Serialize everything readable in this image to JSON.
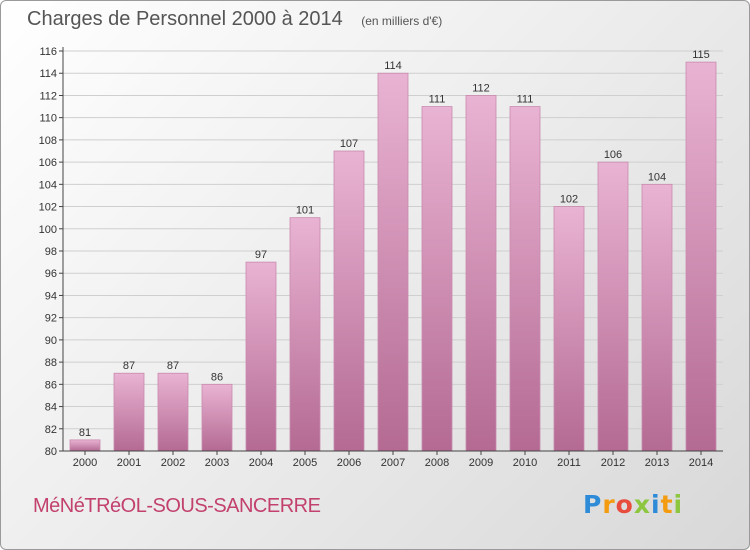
{
  "title": "Charges de Personnel 2000 à 2014",
  "unit_note": "(en milliers d'€)",
  "commune": "MéNéTRéOL-SOUS-SANCERRE",
  "logo": {
    "text": "Proxiti",
    "letters": [
      {
        "ch": "P",
        "color": "#2e8bd8"
      },
      {
        "ch": "r",
        "color": "#f39c12"
      },
      {
        "ch": "o",
        "color": "#e74c3c"
      },
      {
        "ch": "x",
        "color": "#8dc63f"
      },
      {
        "ch": "i",
        "color": "#2e8bd8"
      },
      {
        "ch": "t",
        "color": "#f39c12"
      },
      {
        "ch": "i",
        "color": "#8dc63f"
      }
    ]
  },
  "colors": {
    "bar_top": "#e9b3d3",
    "bar_bottom": "#b46a93",
    "bar_stroke": "#c98aae",
    "axis": "#444444",
    "grid": "#cfcfcf",
    "text": "#333333"
  },
  "chart_data": {
    "type": "bar",
    "title": "Charges de Personnel 2000 à 2014",
    "subtitle": "(en milliers d'€)",
    "categories": [
      "2000",
      "2001",
      "2002",
      "2003",
      "2004",
      "2005",
      "2006",
      "2007",
      "2008",
      "2009",
      "2010",
      "2011",
      "2012",
      "2013",
      "2014"
    ],
    "values": [
      81,
      87,
      87,
      86,
      97,
      101,
      107,
      114,
      111,
      112,
      111,
      102,
      106,
      104,
      115
    ],
    "ylim": [
      80,
      116
    ],
    "yticks": [
      80,
      82,
      84,
      86,
      88,
      90,
      92,
      94,
      96,
      98,
      100,
      102,
      104,
      106,
      108,
      110,
      112,
      114,
      116
    ],
    "grid": true,
    "legend": "none"
  }
}
